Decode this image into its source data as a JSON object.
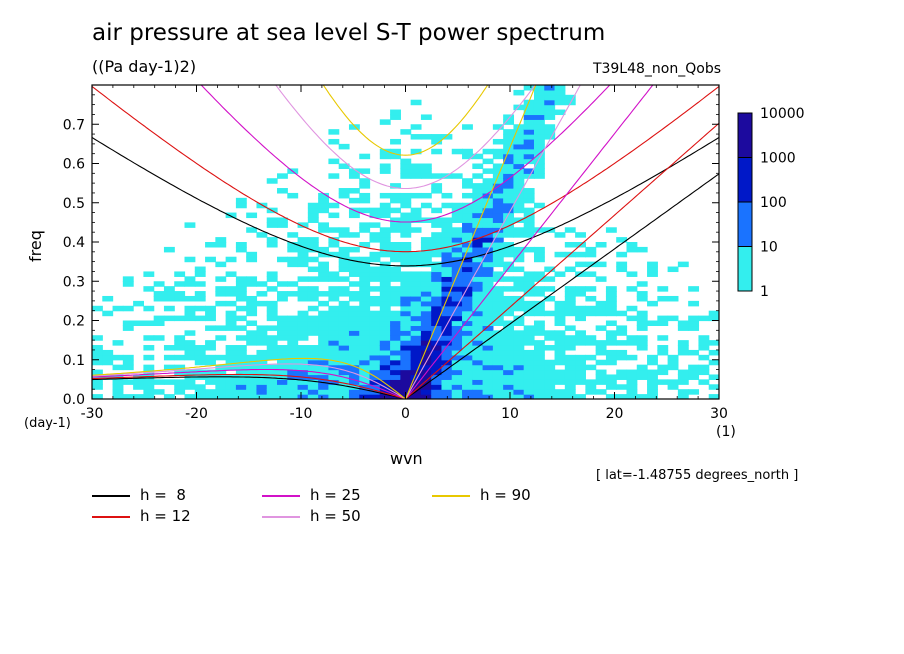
{
  "chart_data": {
    "type": "heatmap",
    "title": "air pressure at sea level S-T power spectrum",
    "subtitle": "((Pa day-1)2)",
    "run_label": "T39L48_non_Qobs",
    "xlabel": "wvn",
    "x_unit": "(1)",
    "ylabel": "freq",
    "y_unit": "(day-1)",
    "xlim": [
      -30,
      30
    ],
    "ylim": [
      0,
      0.8
    ],
    "x_ticks": [
      -30,
      -20,
      -10,
      0,
      10,
      20,
      30
    ],
    "x_tick_labels": [
      "-30",
      "-20",
      "-10",
      "0",
      "10",
      "20",
      "30"
    ],
    "y_ticks": [
      0.0,
      0.1,
      0.2,
      0.3,
      0.4,
      0.5,
      0.6,
      0.7
    ],
    "y_tick_labels": [
      "0.0",
      "0.1",
      "0.2",
      "0.3",
      "0.4",
      "0.5",
      "0.6",
      "0.7"
    ],
    "footnote": "[ lat=-1.48755 degrees_north ]",
    "colorbar": {
      "levels": [
        "1",
        "10",
        "100",
        "1000",
        "10000"
      ],
      "colors": [
        "#33eeee",
        "#1a73ff",
        "#0018c8",
        "#1c0a9e",
        "#5c1aa8"
      ]
    },
    "dispersion_curves": [
      {
        "label": "h =  8",
        "h": 8,
        "color": "#000000"
      },
      {
        "label": "h = 12",
        "h": 12,
        "color": "#dd1111"
      },
      {
        "label": "h = 25",
        "h": 25,
        "color": "#d211c8"
      },
      {
        "label": "h = 50",
        "h": 50,
        "color": "#e095e0"
      },
      {
        "label": "h = 90",
        "h": 90,
        "color": "#e8c800"
      }
    ]
  }
}
